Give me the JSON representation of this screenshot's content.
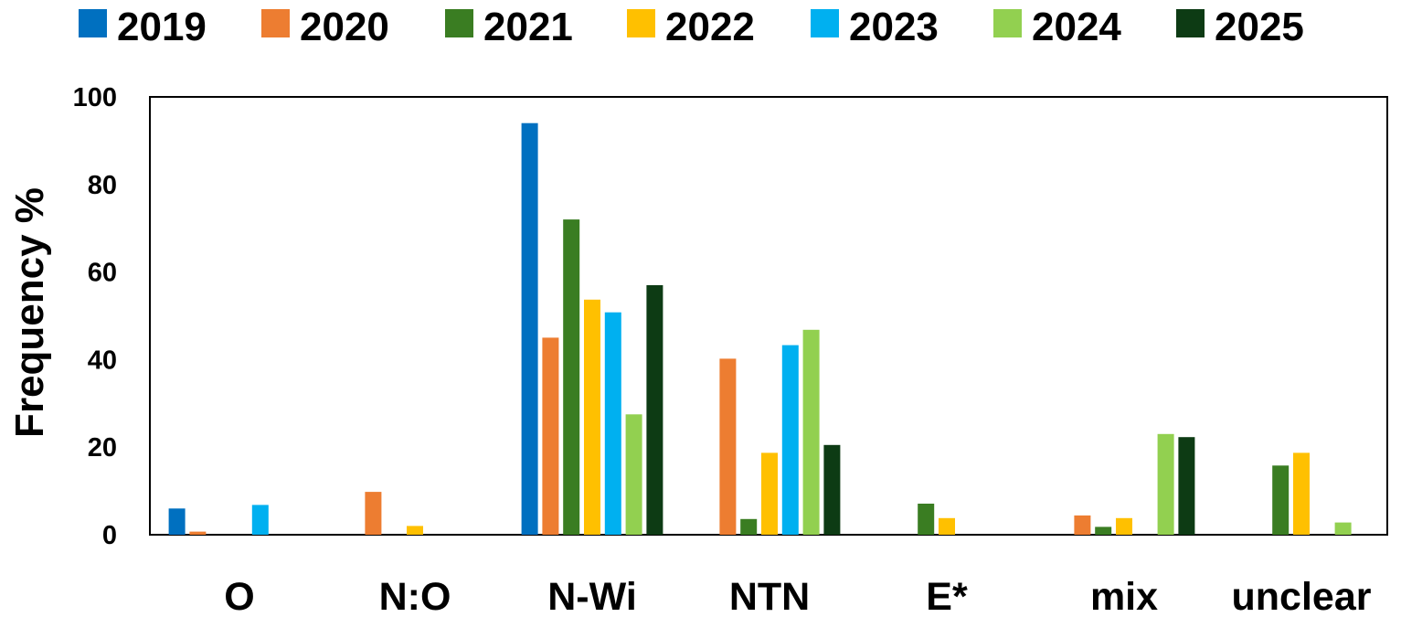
{
  "chart_data": {
    "type": "bar",
    "title": "",
    "xlabel": "",
    "ylabel": "Frequency %",
    "ylim": [
      0,
      100
    ],
    "yticks": [
      "0",
      "20",
      "40",
      "60",
      "80",
      "100"
    ],
    "grid": false,
    "legend_position": "top",
    "categories": [
      "O",
      "N:O",
      "N-Wi",
      "NTN",
      "E*",
      "mix",
      "unclear"
    ],
    "series": [
      {
        "name": "2019",
        "color": "#0070C0",
        "values": [
          6,
          0,
          94,
          0,
          0,
          0,
          0
        ]
      },
      {
        "name": "2020",
        "color": "#ED7D31",
        "values": [
          0.7,
          9.8,
          45,
          40.2,
          0,
          4.4,
          0
        ]
      },
      {
        "name": "2021",
        "color": "#3A7D22",
        "values": [
          0,
          0,
          72,
          3.6,
          7.1,
          1.8,
          15.8
        ]
      },
      {
        "name": "2022",
        "color": "#FFC000",
        "values": [
          0,
          2,
          53.7,
          18.7,
          3.8,
          3.8,
          18.7
        ]
      },
      {
        "name": "2023",
        "color": "#00B0F0",
        "values": [
          6.8,
          0,
          50.8,
          43.3,
          0,
          0,
          0
        ]
      },
      {
        "name": "2024",
        "color": "#92D050",
        "values": [
          0,
          0,
          27.5,
          46.8,
          0,
          23,
          2.8
        ]
      },
      {
        "name": "2025",
        "color": "#0D3B14",
        "values": [
          0,
          0,
          57,
          20.5,
          0,
          22.3,
          0
        ]
      }
    ]
  }
}
